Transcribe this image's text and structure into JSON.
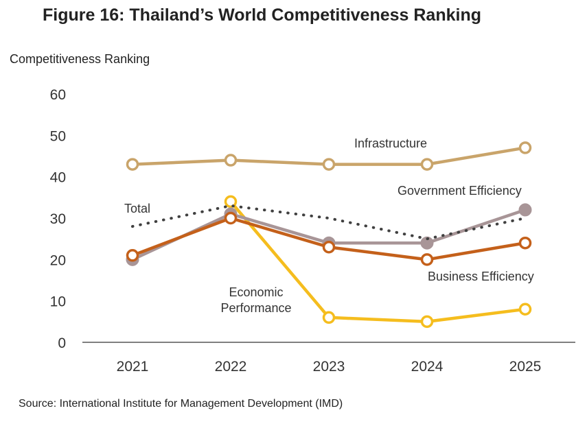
{
  "title": "Figure 16: Thailand’s World Competitiveness Ranking",
  "source": "Source: International Institute for Management Development (IMD)",
  "chart_data": {
    "type": "line",
    "title": "Figure 16: Thailand’s World Competitiveness Ranking",
    "ylabel": "Competitiveness Ranking",
    "xlabel": "",
    "x": [
      "2021",
      "2022",
      "2023",
      "2024",
      "2025"
    ],
    "ylim": [
      0,
      60
    ],
    "yticks": [
      0,
      10,
      20,
      30,
      40,
      50,
      60
    ],
    "grid": false,
    "legend": "none",
    "series": [
      {
        "name": "Infrastructure",
        "values": [
          43,
          44,
          43,
          43,
          47
        ],
        "color": "#c9a46a",
        "style": "solid-hollow-marker"
      },
      {
        "name": "Total",
        "values": [
          28,
          33,
          30,
          25,
          30
        ],
        "color": "#404040",
        "style": "dotted"
      },
      {
        "name": "Economic Performance",
        "values": [
          null,
          34,
          6,
          5,
          8
        ],
        "color": "#f5bd1e",
        "style": "solid-hollow-marker"
      },
      {
        "name": "Government Efficiency",
        "values": [
          20,
          31,
          24,
          24,
          32
        ],
        "color": "#a89597",
        "style": "solid-filled-marker"
      },
      {
        "name": "Business Efficiency",
        "values": [
          21,
          30,
          23,
          20,
          24
        ],
        "color": "#c4601a",
        "style": "solid-hollow-marker"
      }
    ],
    "labels": {
      "infrastructure": "Infrastructure",
      "total": "Total",
      "government": "Government Efficiency",
      "business": "Business Efficiency",
      "economic_line1": "Economic",
      "economic_line2": "Performance"
    }
  }
}
